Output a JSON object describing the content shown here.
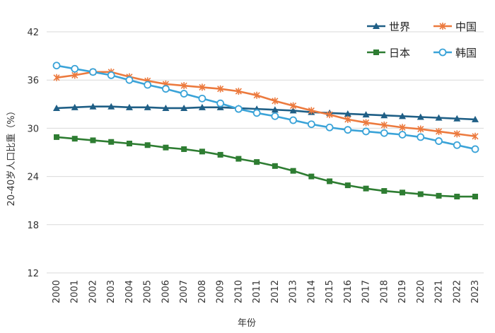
{
  "chart_data": {
    "type": "line",
    "title": "",
    "xlabel": "年份",
    "ylabel": "20-40岁人口比重（%）",
    "ylim": [
      12,
      42
    ],
    "yticks": [
      12,
      18,
      24,
      30,
      36,
      42
    ],
    "grid": "horizontal",
    "legend_position": "top-right",
    "categories": [
      "2000",
      "2001",
      "2002",
      "2003",
      "2004",
      "2005",
      "2006",
      "2007",
      "2008",
      "2009",
      "2010",
      "2011",
      "2012",
      "2013",
      "2014",
      "2015",
      "2016",
      "2017",
      "2018",
      "2019",
      "2020",
      "2021",
      "2022",
      "2023"
    ],
    "series": [
      {
        "name": "世界",
        "color": "#1f5f86",
        "marker": "triangle",
        "values": [
          32.5,
          32.6,
          32.7,
          32.7,
          32.6,
          32.6,
          32.5,
          32.5,
          32.6,
          32.6,
          32.5,
          32.4,
          32.3,
          32.2,
          32.0,
          31.9,
          31.8,
          31.7,
          31.6,
          31.5,
          31.4,
          31.3,
          31.2,
          31.1
        ]
      },
      {
        "name": "中国",
        "color": "#ec7a3e",
        "marker": "x",
        "values": [
          36.3,
          36.6,
          37.0,
          37.0,
          36.4,
          35.9,
          35.5,
          35.3,
          35.1,
          34.9,
          34.6,
          34.1,
          33.4,
          32.8,
          32.2,
          31.7,
          31.1,
          30.7,
          30.4,
          30.1,
          29.9,
          29.6,
          29.3,
          29.0
        ]
      },
      {
        "name": "日本",
        "color": "#2e7d32",
        "marker": "square",
        "values": [
          28.9,
          28.7,
          28.5,
          28.3,
          28.1,
          27.9,
          27.6,
          27.4,
          27.1,
          26.7,
          26.2,
          25.8,
          25.3,
          24.7,
          24.0,
          23.4,
          22.9,
          22.5,
          22.2,
          22.0,
          21.8,
          21.6,
          21.5,
          21.5
        ]
      },
      {
        "name": "韩国",
        "color": "#3aa3d8",
        "marker": "circle",
        "values": [
          37.8,
          37.4,
          37.0,
          36.6,
          36.0,
          35.4,
          34.9,
          34.3,
          33.7,
          33.1,
          32.4,
          31.9,
          31.5,
          31.0,
          30.5,
          30.1,
          29.8,
          29.6,
          29.4,
          29.2,
          28.9,
          28.4,
          27.9,
          27.4
        ]
      }
    ]
  }
}
